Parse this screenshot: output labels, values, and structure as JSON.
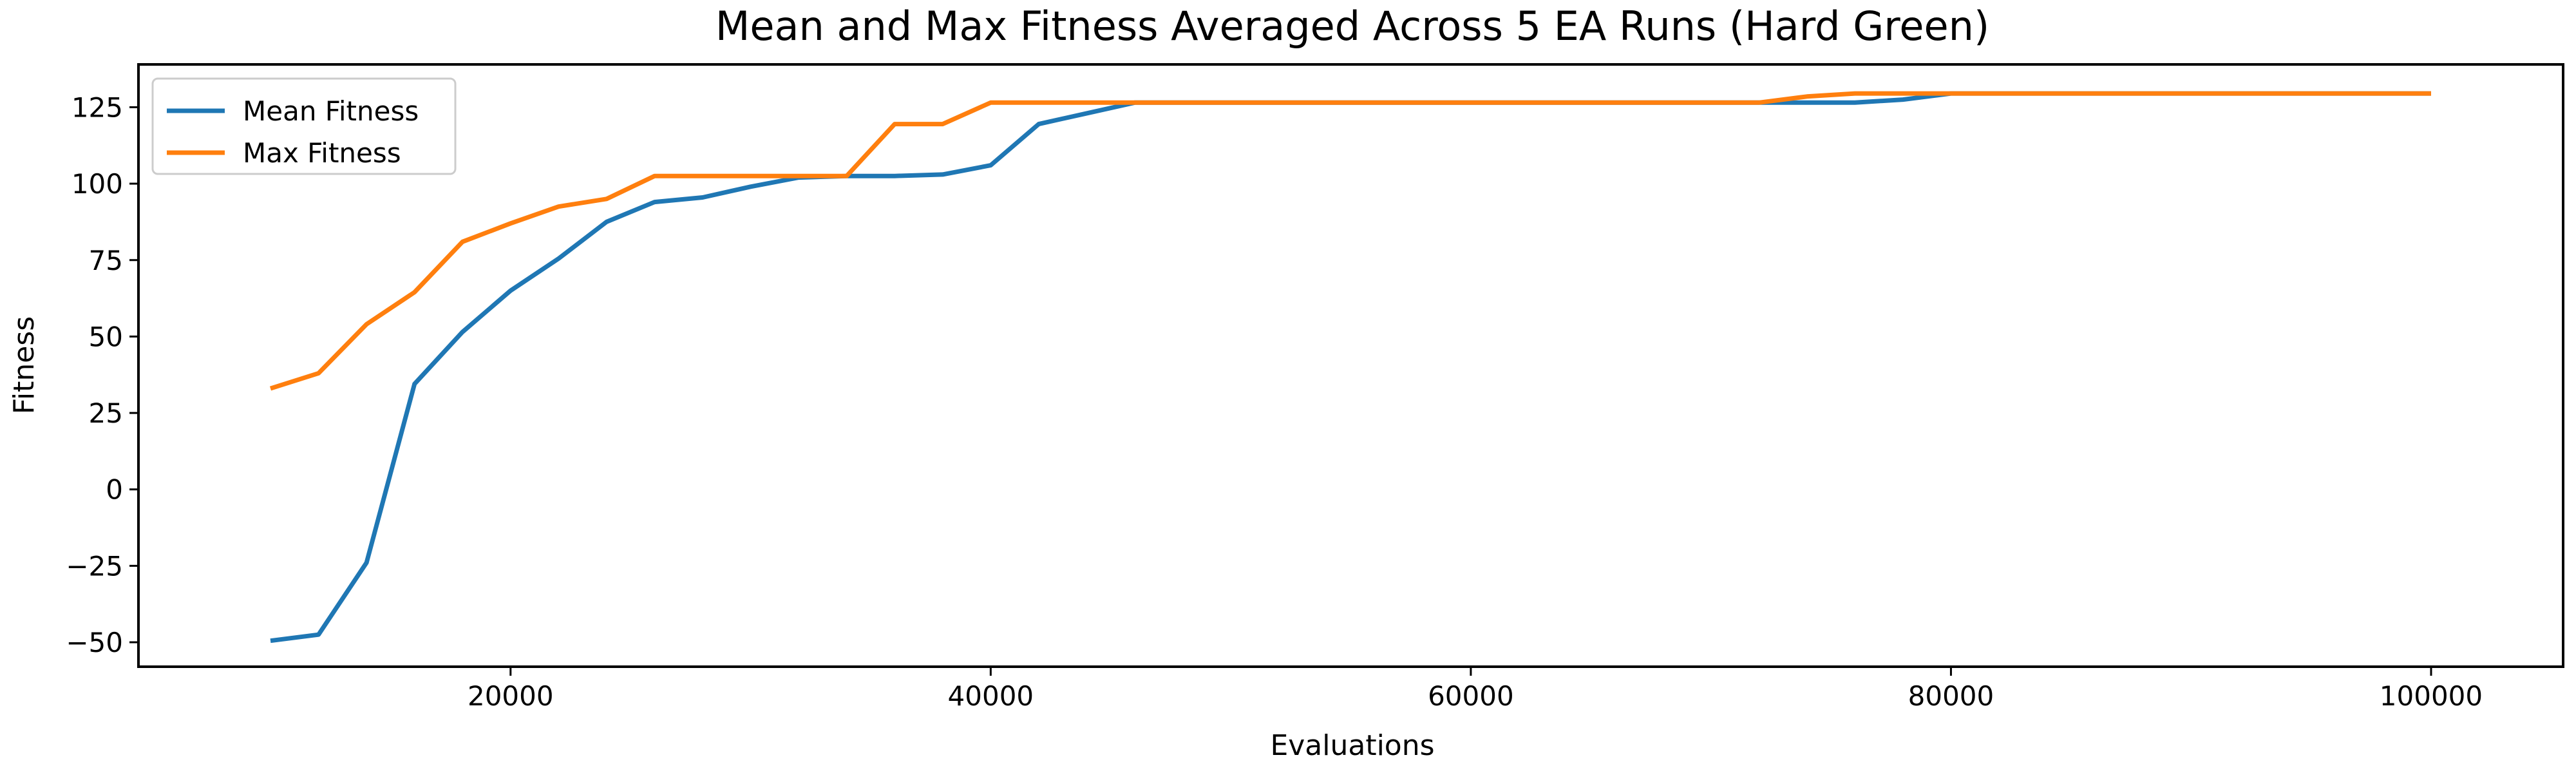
{
  "chart_data": {
    "type": "line",
    "title": "Mean and Max Fitness Averaged Across 5 EA Runs (Hard Green)",
    "xlabel": "Evaluations",
    "ylabel": "Fitness",
    "xlim": [
      4500,
      105500
    ],
    "ylim": [
      -58,
      139
    ],
    "xticks": [
      20000,
      40000,
      60000,
      80000,
      100000
    ],
    "yticks": [
      -50,
      -25,
      0,
      25,
      50,
      75,
      100,
      125
    ],
    "grid": false,
    "legend_position": "top-left",
    "x": [
      10000,
      12000,
      14000,
      16000,
      18000,
      20000,
      22000,
      24000,
      26000,
      28000,
      30000,
      32000,
      34000,
      36000,
      38000,
      40000,
      42000,
      44000,
      46000,
      48000,
      50000,
      52000,
      54000,
      56000,
      58000,
      60000,
      62000,
      64000,
      66000,
      68000,
      70000,
      72000,
      74000,
      76000,
      78000,
      80000,
      82000,
      84000,
      86000,
      88000,
      90000,
      92000,
      94000,
      96000,
      98000,
      100000
    ],
    "series": [
      {
        "name": "Mean Fitness",
        "color": "#1f77b4",
        "values": [
          -49.5,
          -47.5,
          -24,
          34.5,
          51.5,
          65,
          75.5,
          87.5,
          94,
          95.5,
          99,
          102,
          102.5,
          102.5,
          103,
          106,
          119.5,
          123,
          126.5,
          126.5,
          126.5,
          126.5,
          126.5,
          126.5,
          126.5,
          126.5,
          126.5,
          126.5,
          126.5,
          126.5,
          126.5,
          126.5,
          126.5,
          126.5,
          127.5,
          129.5,
          129.5,
          129.5,
          129.5,
          129.5,
          129.5,
          129.5,
          129.5,
          129.5,
          129.5,
          129.5
        ]
      },
      {
        "name": "Max Fitness",
        "color": "#ff7f0e",
        "values": [
          33,
          38,
          54,
          64.5,
          81,
          87,
          92.5,
          95,
          102.5,
          102.5,
          102.5,
          102.5,
          102.5,
          119.5,
          119.5,
          126.5,
          126.5,
          126.5,
          126.5,
          126.5,
          126.5,
          126.5,
          126.5,
          126.5,
          126.5,
          126.5,
          126.5,
          126.5,
          126.5,
          126.5,
          126.5,
          126.5,
          128.5,
          129.5,
          129.5,
          129.5,
          129.5,
          129.5,
          129.5,
          129.5,
          129.5,
          129.5,
          129.5,
          129.5,
          129.5,
          129.5
        ]
      }
    ]
  }
}
